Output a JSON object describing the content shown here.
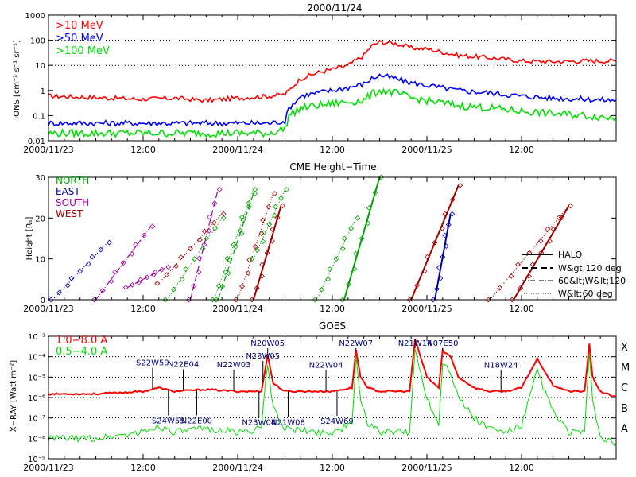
{
  "chart_data": [
    {
      "type": "line",
      "title": "2000/11/24",
      "ylabel": "IONS [cm⁻² s⁻¹ sr⁻¹]",
      "yscale": "log",
      "ylim": [
        0.01,
        1000
      ],
      "ytick_labels": [
        "0.01",
        "0.1",
        "1",
        "10",
        "100",
        "1000"
      ],
      "xtick_labels": [
        "2000/11/23",
        "12:00",
        "2000/11/24",
        "12:00",
        "2000/11/25",
        "12:00"
      ],
      "x_range_hours": [
        0,
        72
      ],
      "x_unit": "hours from 2000/11/23 00:00",
      "reference_lines": [
        10,
        100
      ],
      "legend": [
        "&gt;10 MeV",
        "&gt;50 MeV",
        "&gt;100 MeV"
      ],
      "series": [
        {
          "name": ">10 MeV",
          "color": "#ff0000",
          "x": [
            0,
            4,
            8,
            12,
            16,
            20,
            24,
            28,
            30,
            30.5,
            32,
            34,
            36,
            38,
            40,
            41,
            42,
            43,
            44,
            46,
            48,
            52,
            56,
            60,
            64,
            68,
            72
          ],
          "y": [
            0.6,
            0.55,
            0.5,
            0.45,
            0.5,
            0.4,
            0.5,
            0.6,
            0.7,
            1.0,
            3,
            5,
            7,
            10,
            25,
            60,
            85,
            80,
            75,
            50,
            45,
            25,
            20,
            15,
            14,
            15,
            15
          ]
        },
        {
          "name": ">50 MeV",
          "color": "#0000ff",
          "x": [
            0,
            4,
            8,
            12,
            16,
            20,
            24,
            28,
            30,
            30.5,
            32,
            34,
            36,
            38,
            40,
            41,
            42,
            43,
            44,
            46,
            48,
            52,
            56,
            60,
            64,
            68,
            72
          ],
          "y": [
            0.05,
            0.05,
            0.05,
            0.05,
            0.05,
            0.05,
            0.05,
            0.05,
            0.06,
            0.2,
            0.6,
            0.8,
            1.0,
            1.3,
            1.8,
            3,
            4,
            3.5,
            3,
            2,
            1.6,
            1,
            0.8,
            0.6,
            0.5,
            0.45,
            0.4
          ]
        },
        {
          "name": ">100 MeV",
          "color": "#00e000",
          "x": [
            0,
            4,
            8,
            12,
            16,
            20,
            24,
            28,
            30,
            30.5,
            32,
            34,
            36,
            38,
            40,
            41,
            42,
            43,
            44,
            46,
            48,
            52,
            56,
            60,
            64,
            68,
            72
          ],
          "y": [
            0.02,
            0.02,
            0.02,
            0.02,
            0.02,
            0.02,
            0.02,
            0.02,
            0.03,
            0.1,
            0.2,
            0.25,
            0.3,
            0.35,
            0.4,
            0.7,
            1.0,
            0.9,
            0.8,
            0.5,
            0.4,
            0.25,
            0.2,
            0.15,
            0.12,
            0.1,
            0.08
          ]
        }
      ]
    },
    {
      "type": "scatter",
      "title": "CME Height−Time",
      "ylabel": "Height [Rₛ]",
      "ylim": [
        0,
        30
      ],
      "ytick_labels": [
        "0",
        "10",
        "20",
        "30"
      ],
      "xtick_labels": [
        "2000/11/23",
        "12:00",
        "2000/11/24",
        "12:00",
        "2000/11/25",
        "12:00"
      ],
      "x_range_hours": [
        0,
        72
      ],
      "legend_directions": [
        {
          "label": "NORTH",
          "color": "#00a000"
        },
        {
          "label": "EAST",
          "color": "#0000a0"
        },
        {
          "label": "SOUTH",
          "color": "#a000a0"
        },
        {
          "label": "WEST",
          "color": "#a00000"
        }
      ],
      "legend_widths": [
        "HALO",
        "W&gt;120 deg",
        "60&lt;W&lt;120",
        "W&lt;60 deg"
      ],
      "series": [
        {
          "direction": "EAST",
          "color": "#0000a0",
          "width": "W<60 deg",
          "x": [
            0.5,
            7.5
          ],
          "y": [
            0,
            14
          ]
        },
        {
          "direction": "SOUTH",
          "color": "#a000a0",
          "width": "60<W<120",
          "x": [
            6,
            13
          ],
          "y": [
            0,
            18
          ]
        },
        {
          "direction": "SOUTH",
          "color": "#a000a0",
          "width": "60<W<120",
          "x": [
            10,
            15
          ],
          "y": [
            3,
            8
          ]
        },
        {
          "direction": "WEST",
          "color": "#a00000",
          "width": "W<60 deg",
          "x": [
            14,
            22
          ],
          "y": [
            4,
            21
          ]
        },
        {
          "direction": "NORTH",
          "color": "#00a000",
          "width": "W<60 deg",
          "x": [
            15,
            22
          ],
          "y": [
            0,
            20
          ]
        },
        {
          "direction": "SOUTH",
          "color": "#a000a0",
          "width": "W>120 deg",
          "x": [
            18,
            21.5
          ],
          "y": [
            0,
            27
          ]
        },
        {
          "direction": "NORTH",
          "color": "#00a000",
          "width": "W<60 deg",
          "x": [
            21,
            26
          ],
          "y": [
            0,
            27
          ]
        },
        {
          "direction": "NORTH",
          "color": "#00a000",
          "width": "W>120 deg",
          "x": [
            21.5,
            26
          ],
          "y": [
            0,
            26
          ]
        },
        {
          "direction": "WEST",
          "color": "#a00000",
          "width": "W<60 deg",
          "x": [
            24,
            28.5
          ],
          "y": [
            0,
            26
          ]
        },
        {
          "direction": "NORTH",
          "color": "#00a000",
          "width": "W<60 deg",
          "x": [
            26,
            30
          ],
          "y": [
            10,
            27
          ]
        },
        {
          "direction": "WEST",
          "color": "#a00000",
          "width": "HALO",
          "x": [
            26,
            29.5
          ],
          "y": [
            0,
            23
          ]
        },
        {
          "direction": "NORTH",
          "color": "#00a000",
          "width": "W<60 deg",
          "x": [
            34,
            39
          ],
          "y": [
            0,
            20
          ]
        },
        {
          "direction": "NORTH",
          "color": "#00a000",
          "width": "HALO",
          "x": [
            37.5,
            42
          ],
          "y": [
            0,
            30
          ]
        },
        {
          "direction": "WEST",
          "color": "#a00000",
          "width": "HALO",
          "x": [
            46,
            52
          ],
          "y": [
            0,
            28
          ]
        },
        {
          "direction": "EAST",
          "color": "#0000a0",
          "width": "HALO",
          "x": [
            49,
            51
          ],
          "y": [
            0,
            21
          ]
        },
        {
          "direction": "WEST",
          "color": "#a00000",
          "width": "W<60 deg",
          "x": [
            56,
            66
          ],
          "y": [
            0,
            23
          ]
        },
        {
          "direction": "WEST",
          "color": "#a00000",
          "width": "HALO",
          "x": [
            59,
            66
          ],
          "y": [
            0,
            23
          ]
        }
      ]
    },
    {
      "type": "line",
      "title": "GOES",
      "ylabel": "X−RAY [Watt m⁻²]",
      "yscale": "log",
      "ylim": [
        1e-09,
        0.001
      ],
      "ytick_labels": [
        "10⁻⁹",
        "10⁻⁸",
        "10⁻⁷",
        "10⁻⁶",
        "10⁻⁵",
        "10⁻⁴",
        "10⁻³"
      ],
      "xtick_labels": [
        "2000/11/23",
        "12:00",
        "2000/11/24",
        "12:00",
        "2000/11/25",
        "12:00"
      ],
      "x_range_hours": [
        0,
        72
      ],
      "flare_classes": [
        "A",
        "B",
        "C",
        "M",
        "X"
      ],
      "legend": [
        "1.0−8.0 A",
        "0.5−4.0 A"
      ],
      "series": [
        {
          "name": "1.0−8.0 A",
          "color": "#ff0000",
          "x": [
            0,
            6,
            12,
            14,
            16,
            20,
            24,
            27,
            27.8,
            28.5,
            30,
            34,
            36,
            38.5,
            39,
            39.6,
            40.5,
            42,
            44,
            45.8,
            46.5,
            48,
            49.5,
            50,
            51,
            52,
            54,
            56,
            58,
            60,
            62,
            64,
            66,
            68,
            68.6,
            69,
            70,
            72
          ],
          "y": [
            1.5e-06,
            1.5e-06,
            2e-06,
            3e-06,
            2e-06,
            2.5e-06,
            2e-06,
            2e-06,
            0.00012,
            5e-06,
            2e-06,
            2e-06,
            2e-06,
            3e-06,
            0.0002,
            1e-05,
            3e-06,
            2e-06,
            2e-06,
            2e-06,
            0.0007,
            1e-05,
            3e-06,
            0.0002,
            0.0001,
            1e-05,
            3e-06,
            2e-06,
            2e-06,
            3e-06,
            8e-05,
            4e-06,
            2e-06,
            2e-06,
            0.0004,
            1e-05,
            2e-06,
            1e-06
          ]
        },
        {
          "name": "0.5−4.0 A",
          "color": "#00e000",
          "x": [
            0,
            6,
            12,
            14,
            16,
            20,
            24,
            27,
            27.8,
            28.5,
            30,
            34,
            36,
            38.5,
            39,
            39.6,
            40.5,
            42,
            44,
            45.8,
            46.5,
            48,
            49.5,
            50,
            51,
            52,
            54,
            56,
            58,
            60,
            62,
            64,
            66,
            68,
            68.6,
            69,
            70,
            72
          ],
          "y": [
            1e-08,
            1e-08,
            2e-08,
            4e-08,
            2e-08,
            3e-08,
            2e-08,
            3e-08,
            5e-05,
            3e-07,
            3e-08,
            2e-08,
            2e-08,
            5e-08,
            8e-05,
            1e-06,
            5e-08,
            2e-08,
            2e-08,
            2e-08,
            0.0002,
            1e-06,
            5e-08,
            6e-05,
            2e-05,
            1e-06,
            1e-07,
            3e-08,
            2e-08,
            4e-08,
            2e-05,
            2e-07,
            2e-08,
            2e-08,
            0.0001,
            1e-06,
            1e-08,
            5e-09
          ]
        }
      ],
      "flare_annotations": [
        {
          "label": "S22W59",
          "x": 13.2,
          "upper": true
        },
        {
          "label": "S24W55",
          "x": 15.2,
          "upper": false
        },
        {
          "label": "N22E04",
          "x": 17.1,
          "upper": true
        },
        {
          "label": "N22E00",
          "x": 18.8,
          "upper": false
        },
        {
          "label": "N22W03",
          "x": 23.5,
          "upper": true
        },
        {
          "label": "N23W04",
          "x": 26.7,
          "upper": false
        },
        {
          "label": "N23W05",
          "x": 27.2,
          "upper": true
        },
        {
          "label": "N20W05",
          "x": 27.8,
          "upper": true
        },
        {
          "label": "N21W08",
          "x": 30.4,
          "upper": false
        },
        {
          "label": "N22W04",
          "x": 35.2,
          "upper": true
        },
        {
          "label": "S24W69",
          "x": 36.6,
          "upper": false
        },
        {
          "label": "N22W07",
          "x": 39.0,
          "upper": true
        },
        {
          "label": "N21W14",
          "x": 46.5,
          "upper": true
        },
        {
          "label": "N07E50",
          "x": 50.0,
          "upper": true
        },
        {
          "label": "N18W24",
          "x": 57.4,
          "upper": true
        }
      ]
    }
  ]
}
